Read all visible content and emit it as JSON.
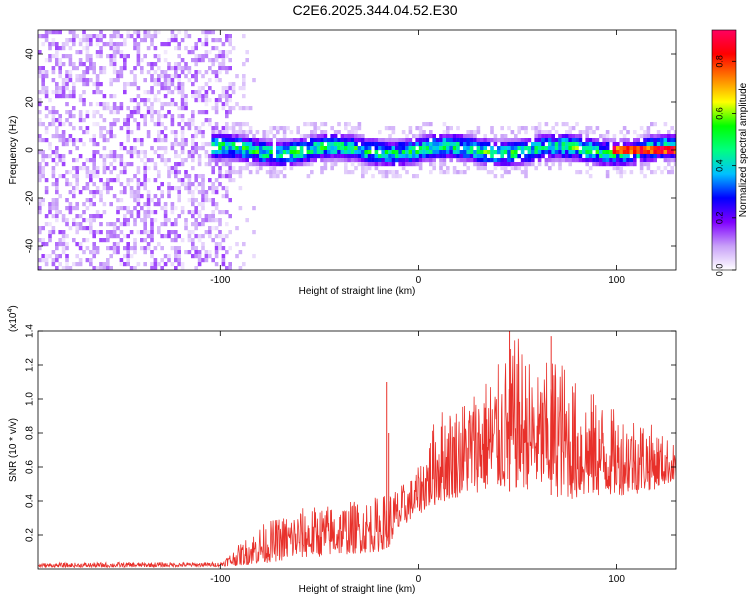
{
  "title": "C2E6.2025.344.04.52.E30",
  "chart_data": [
    {
      "type": "heatmap",
      "name": "spectrogram",
      "xlabel": "Height of straight line (km)",
      "ylabel": "Frequency (Hz)",
      "xlim": [
        -192,
        130
      ],
      "ylim": [
        -50,
        50
      ],
      "xticks": [
        -100,
        0,
        100
      ],
      "xtick_labels": [
        "-100",
        "0",
        "100"
      ],
      "yticks": [
        -40,
        -20,
        0,
        20,
        40
      ],
      "ytick_labels": [
        "-40",
        "-20",
        "0",
        "20",
        "40"
      ],
      "regions": [
        {
          "description": "broadband noise",
          "x_range": [
            -192,
            -96
          ],
          "freq_range": [
            -50,
            50
          ],
          "amplitude_range": [
            0.0,
            0.15
          ]
        },
        {
          "description": "signal band",
          "x_range": [
            -105,
            130
          ],
          "freq_center": 0,
          "freq_halfwidth": 6,
          "amplitude_range": [
            0.1,
            0.5
          ]
        },
        {
          "description": "peak ridge",
          "x_range": [
            98,
            130
          ],
          "freq_center": 0,
          "amplitude_range": [
            0.7,
            0.92
          ]
        }
      ],
      "colorbar": {
        "label": "Normalized spectral amplitude",
        "range": [
          0.0,
          0.92
        ],
        "ticks": [
          0.0,
          0.2,
          0.4,
          0.6,
          0.8
        ],
        "tick_labels": [
          "0.0",
          "0.2",
          "0.4",
          "0.6",
          "0.8"
        ],
        "colors": [
          "#ffffff",
          "#c8a0f8",
          "#8000ff",
          "#0000ff",
          "#00c0ff",
          "#00ff80",
          "#00ff00",
          "#ffff00",
          "#ff8000",
          "#ff0000",
          "#ff0060"
        ]
      }
    },
    {
      "type": "line",
      "name": "snr",
      "xlabel": "Height of straight line (km)",
      "ylabel": "SNR (10 * v/v)",
      "y_multiplier": "(x10",
      "y_multiplier_exp": "4",
      "xlim": [
        -192,
        130
      ],
      "ylim": [
        0,
        14000
      ],
      "xticks": [
        -100,
        0,
        100
      ],
      "xtick_labels": [
        "-100",
        "0",
        "100"
      ],
      "yticks": [
        2000,
        4000,
        6000,
        8000,
        10000,
        12000,
        14000
      ],
      "ytick_labels": [
        "0.2",
        "0.4",
        "0.6",
        "0.8",
        "1.0",
        "1.2",
        "1.4"
      ],
      "color": "#e8302a",
      "envelope": {
        "x": [
          -192,
          -150,
          -100,
          -90,
          -80,
          -60,
          -40,
          -20,
          -15,
          -5,
          0,
          10,
          20,
          30,
          40,
          50,
          60,
          70,
          80,
          90,
          100,
          110,
          120,
          130
        ],
        "low": [
          100,
          100,
          150,
          200,
          300,
          600,
          800,
          1000,
          1300,
          2800,
          3200,
          3800,
          4200,
          4500,
          4500,
          4600,
          4700,
          4200,
          4000,
          4200,
          4300,
          4400,
          4700,
          5200
        ],
        "high": [
          350,
          400,
          400,
          1500,
          2600,
          3600,
          3900,
          4300,
          4600,
          5200,
          6000,
          9500,
          9800,
          11000,
          12000,
          13800,
          11500,
          13000,
          11000,
          10300,
          9300,
          9300,
          8300,
          7300
        ]
      },
      "spikes": [
        {
          "x": -16,
          "y": 11000
        },
        {
          "x": -15,
          "y": 8000
        },
        {
          "x": 46,
          "y": 14000
        },
        {
          "x": 67,
          "y": 13700
        }
      ]
    }
  ]
}
